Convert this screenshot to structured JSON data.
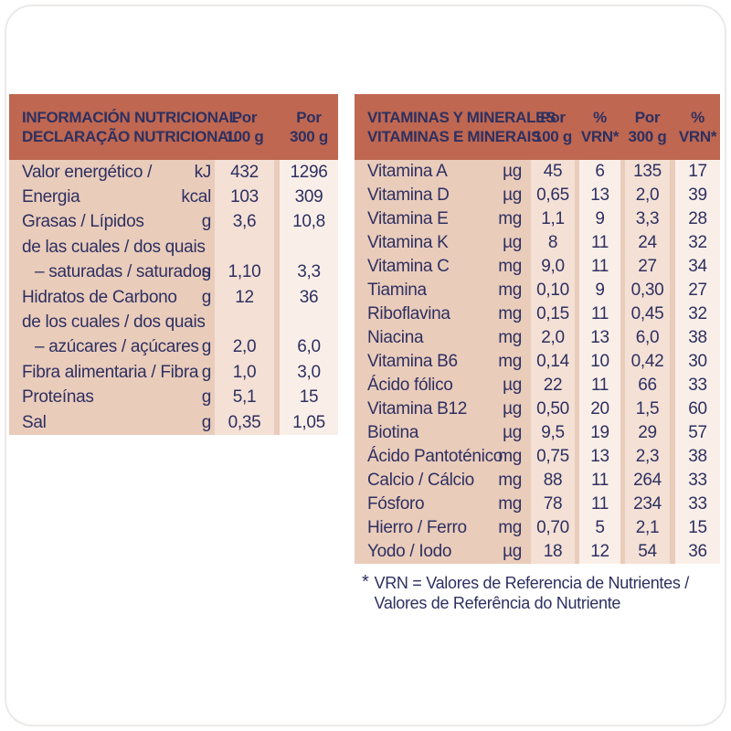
{
  "colors": {
    "header_bg": "#bf6750",
    "body_bg": "#eaccbb",
    "band_pink": "#f4e0d5",
    "band_cream": "#faefe8",
    "text": "#2d3061"
  },
  "left_table": {
    "title_line1": "INFORMACIÓN NUTRICIONAL",
    "title_line2": "DECLARAÇÃO NUTRICIONAL",
    "col_headers": [
      {
        "line1": "Por",
        "line2": "100 g"
      },
      {
        "line1": "Por",
        "line2": "300 g"
      }
    ],
    "rows": [
      {
        "label": "Valor energético /",
        "unit": "kJ",
        "per100": "432",
        "per300": "1296",
        "indent": false
      },
      {
        "label": "Energia",
        "unit": "kcal",
        "per100": "103",
        "per300": "309",
        "indent": false
      },
      {
        "label": "Grasas / Lípidos",
        "unit": "g",
        "per100": "3,6",
        "per300": "10,8",
        "indent": false
      },
      {
        "label": "de las cuales / dos quais",
        "unit": "",
        "per100": "",
        "per300": "",
        "indent": false
      },
      {
        "label": "– saturadas / saturados",
        "unit": "g",
        "per100": "1,10",
        "per300": "3,3",
        "indent": true
      },
      {
        "label": "Hidratos de Carbono",
        "unit": "g",
        "per100": "12",
        "per300": "36",
        "indent": false
      },
      {
        "label": "de los cuales / dos quais",
        "unit": "",
        "per100": "",
        "per300": "",
        "indent": false
      },
      {
        "label": "– azúcares / açúcares",
        "unit": "g",
        "per100": "2,0",
        "per300": "6,0",
        "indent": true
      },
      {
        "label": "Fibra alimentaria / Fibra",
        "unit": "g",
        "per100": "1,0",
        "per300": "3,0",
        "indent": false
      },
      {
        "label": "Proteínas",
        "unit": "g",
        "per100": "5,1",
        "per300": "15",
        "indent": false
      },
      {
        "label": "Sal",
        "unit": "g",
        "per100": "0,35",
        "per300": "1,05",
        "indent": false
      }
    ]
  },
  "right_table": {
    "title_line1": "VITAMINAS Y MINERALES",
    "title_line2": "VITAMINAS E MINERAIS",
    "col_headers": [
      {
        "line1": "Por",
        "line2": "100 g"
      },
      {
        "line1": "%",
        "line2": "VRN*"
      },
      {
        "line1": "Por",
        "line2": "300 g"
      },
      {
        "line1": "%",
        "line2": "VRN*"
      }
    ],
    "rows": [
      {
        "label": "Vitamina A",
        "unit": "µg",
        "per100": "45",
        "vrn100": "6",
        "per300": "135",
        "vrn300": "17"
      },
      {
        "label": "Vitamina D",
        "unit": "µg",
        "per100": "0,65",
        "vrn100": "13",
        "per300": "2,0",
        "vrn300": "39"
      },
      {
        "label": "Vitamina E",
        "unit": "mg",
        "per100": "1,1",
        "vrn100": "9",
        "per300": "3,3",
        "vrn300": "28"
      },
      {
        "label": "Vitamina K",
        "unit": "µg",
        "per100": "8",
        "vrn100": "11",
        "per300": "24",
        "vrn300": "32"
      },
      {
        "label": "Vitamina C",
        "unit": "mg",
        "per100": "9,0",
        "vrn100": "11",
        "per300": "27",
        "vrn300": "34"
      },
      {
        "label": "Tiamina",
        "unit": "mg",
        "per100": "0,10",
        "vrn100": "9",
        "per300": "0,30",
        "vrn300": "27"
      },
      {
        "label": "Riboflavina",
        "unit": "mg",
        "per100": "0,15",
        "vrn100": "11",
        "per300": "0,45",
        "vrn300": "32"
      },
      {
        "label": "Niacina",
        "unit": "mg",
        "per100": "2,0",
        "vrn100": "13",
        "per300": "6,0",
        "vrn300": "38"
      },
      {
        "label": "Vitamina B6",
        "unit": "mg",
        "per100": "0,14",
        "vrn100": "10",
        "per300": "0,42",
        "vrn300": "30"
      },
      {
        "label": "Ácido fólico",
        "unit": "µg",
        "per100": "22",
        "vrn100": "11",
        "per300": "66",
        "vrn300": "33"
      },
      {
        "label": "Vitamina B12",
        "unit": "µg",
        "per100": "0,50",
        "vrn100": "20",
        "per300": "1,5",
        "vrn300": "60"
      },
      {
        "label": "Biotina",
        "unit": "µg",
        "per100": "9,5",
        "vrn100": "19",
        "per300": "29",
        "vrn300": "57"
      },
      {
        "label": "Ácido Pantoténico",
        "unit": "mg",
        "per100": "0,75",
        "vrn100": "13",
        "per300": "2,3",
        "vrn300": "38"
      },
      {
        "label": "Calcio / Cálcio",
        "unit": "mg",
        "per100": "88",
        "vrn100": "11",
        "per300": "264",
        "vrn300": "33"
      },
      {
        "label": "Fósforo",
        "unit": "mg",
        "per100": "78",
        "vrn100": "11",
        "per300": "234",
        "vrn300": "33"
      },
      {
        "label": "Hierro / Ferro",
        "unit": "mg",
        "per100": "0,70",
        "vrn100": "5",
        "per300": "2,1",
        "vrn300": "15"
      },
      {
        "label": "Yodo / Iodo",
        "unit": "µg",
        "per100": "18",
        "vrn100": "12",
        "per300": "54",
        "vrn300": "36"
      }
    ]
  },
  "footnote": {
    "marker": "*",
    "line1": "VRN = Valores de Referencia de Nutrientes /",
    "line2": "Valores de Referência do Nutriente"
  }
}
